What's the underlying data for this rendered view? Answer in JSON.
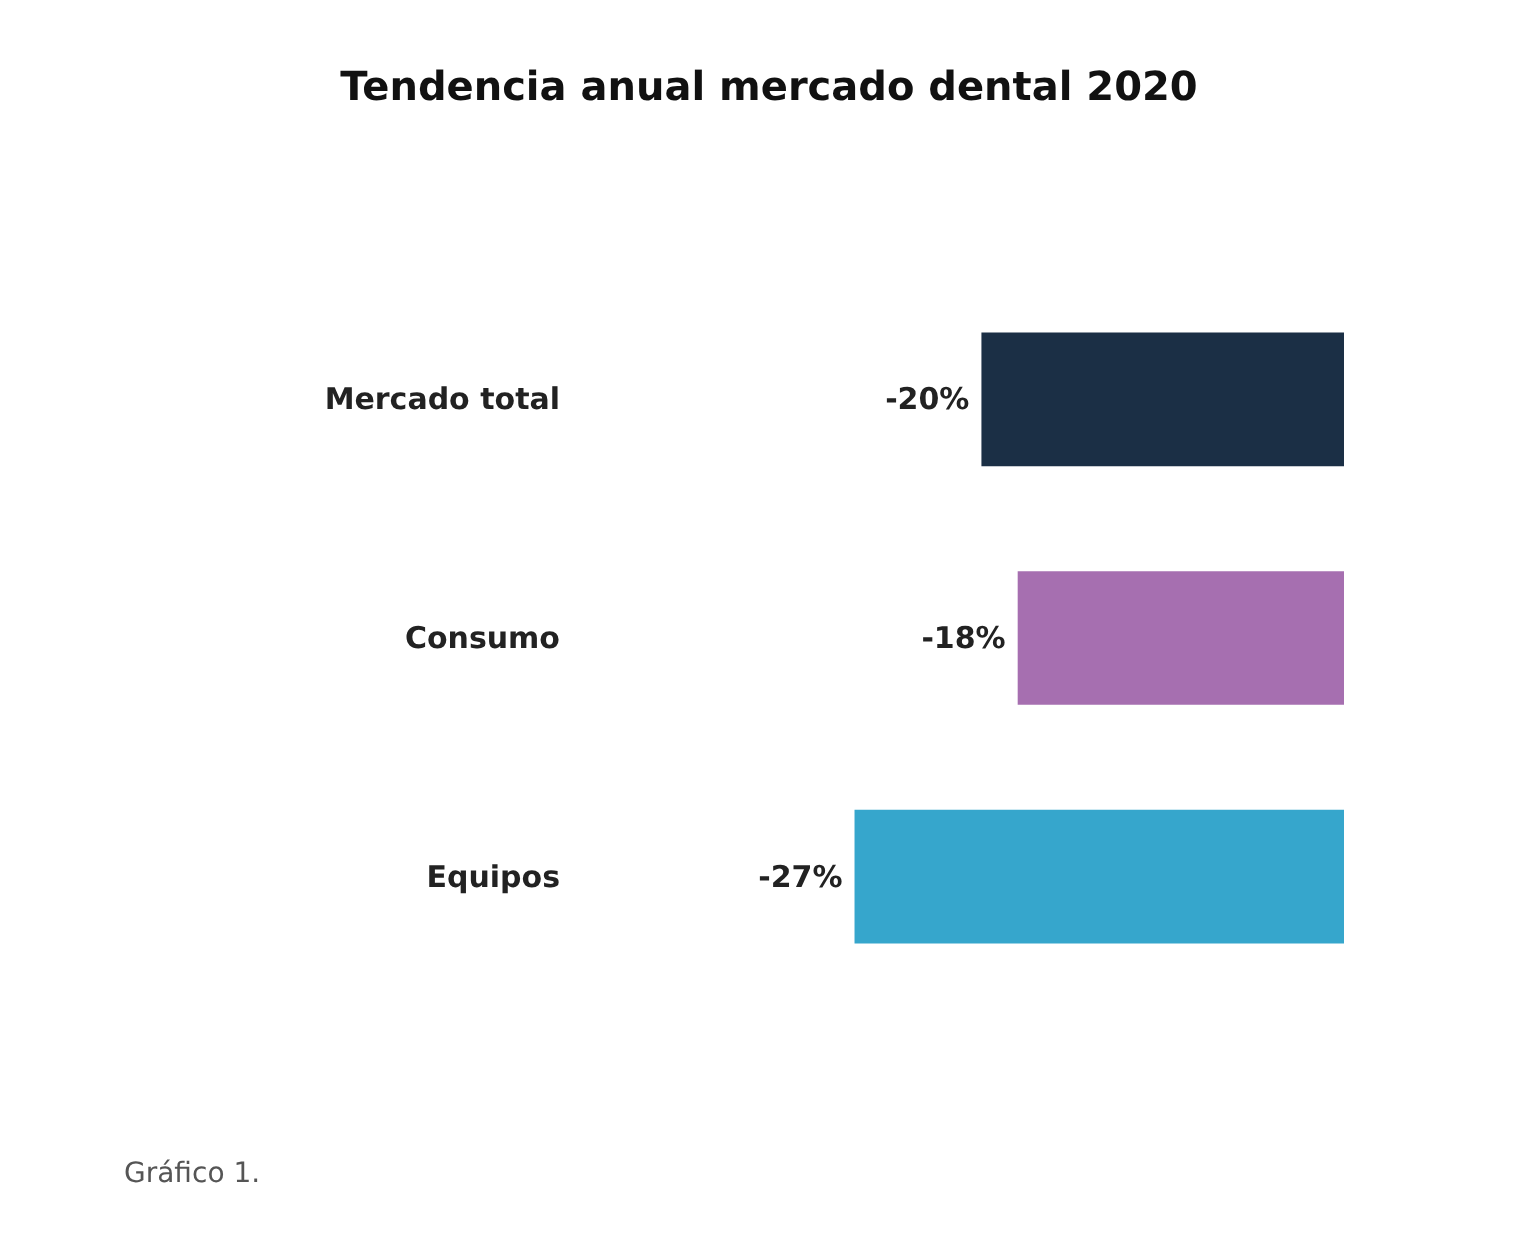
{
  "chart_data": {
    "type": "bar",
    "orientation": "horizontal",
    "title": "Tendencia anual mercado dental 2020",
    "categories": [
      "Mercado total",
      "Consumo",
      "Equipos"
    ],
    "values": [
      -20,
      -18,
      -27
    ],
    "colors": [
      "#1b2f45",
      "#a66fb0",
      "#36a6cc"
    ],
    "value_labels": [
      "-20%",
      "-18%",
      "-27%"
    ],
    "grid": false,
    "annotations": [
      "Gráfico 1."
    ]
  }
}
